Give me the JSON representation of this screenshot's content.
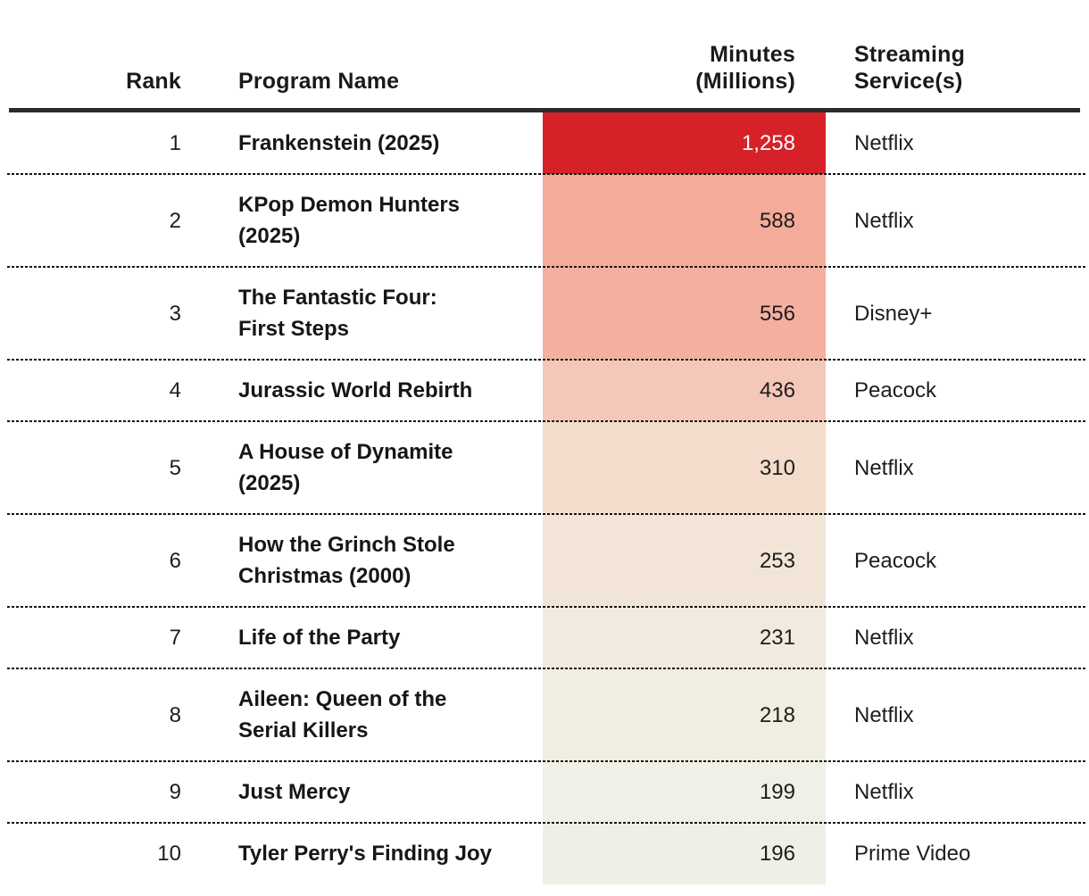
{
  "table": {
    "columns": [
      {
        "key": "rank",
        "label": "Rank"
      },
      {
        "key": "program",
        "label": "Program Name"
      },
      {
        "key": "minutes",
        "label": "Minutes\n(Millions)"
      },
      {
        "key": "service",
        "label": "Streaming\nService(s)"
      }
    ],
    "rows": [
      {
        "rank": "1",
        "program": "Frankenstein (2025)",
        "minutes": "1,258",
        "service": "Netflix",
        "cell_bg": "#d62128",
        "minutes_color": "#ffffff"
      },
      {
        "rank": "2",
        "program": "KPop Demon Hunters\n(2025)",
        "minutes": "588",
        "service": "Netflix",
        "cell_bg": "#f5ab9a",
        "minutes_color": "#1d1d1d"
      },
      {
        "rank": "3",
        "program": "The Fantastic Four:\nFirst Steps",
        "minutes": "556",
        "service": "Disney+",
        "cell_bg": "#f5afa0",
        "minutes_color": "#1d1d1d"
      },
      {
        "rank": "4",
        "program": "Jurassic World Rebirth",
        "minutes": "436",
        "service": "Peacock",
        "cell_bg": "#f4c7b8",
        "minutes_color": "#1d1d1d"
      },
      {
        "rank": "5",
        "program": "A House of Dynamite\n(2025)",
        "minutes": "310",
        "service": "Netflix",
        "cell_bg": "#f3dccc",
        "minutes_color": "#1d1d1d"
      },
      {
        "rank": "6",
        "program": "How the Grinch Stole\nChristmas (2000)",
        "minutes": "253",
        "service": "Peacock",
        "cell_bg": "#f2e5d8",
        "minutes_color": "#1d1d1d"
      },
      {
        "rank": "7",
        "program": "Life of the Party",
        "minutes": "231",
        "service": "Netflix",
        "cell_bg": "#f1eade",
        "minutes_color": "#1d1d1d"
      },
      {
        "rank": "8",
        "program": "Aileen: Queen of the\nSerial Killers",
        "minutes": "218",
        "service": "Netflix",
        "cell_bg": "#f0ede1",
        "minutes_color": "#1d1d1d"
      },
      {
        "rank": "9",
        "program": "Just Mercy",
        "minutes": "199",
        "service": "Netflix",
        "cell_bg": "#eff0e6",
        "minutes_color": "#1d1d1d"
      },
      {
        "rank": "10",
        "program": "Tyler Perry's Finding Joy",
        "minutes": "196",
        "service": "Prime Video",
        "cell_bg": "#efefe5",
        "minutes_color": "#1d1d1d"
      }
    ]
  },
  "colors": {
    "header_rule": "#2d2b2a",
    "separator": "#141414",
    "top_value_bg": "#d62128",
    "top_value_text": "#ffffff",
    "text": "#1a1a1a"
  },
  "chart_data": {
    "type": "table",
    "columns": [
      "Rank",
      "Program Name",
      "Minutes (Millions)",
      "Streaming Service(s)"
    ],
    "categories": [
      "Frankenstein (2025)",
      "KPop Demon Hunters (2025)",
      "The Fantastic Four: First Steps",
      "Jurassic World Rebirth",
      "A House of Dynamite (2025)",
      "How the Grinch Stole Christmas (2000)",
      "Life of the Party",
      "Aileen: Queen of the Serial Killers",
      "Just Mercy",
      "Tyler Perry's Finding Joy"
    ],
    "series": [
      {
        "name": "Minutes (Millions)",
        "values": [
          1258,
          588,
          556,
          436,
          310,
          253,
          231,
          218,
          199,
          196
        ]
      }
    ],
    "services": [
      "Netflix",
      "Netflix",
      "Disney+",
      "Peacock",
      "Netflix",
      "Peacock",
      "Netflix",
      "Netflix",
      "Netflix",
      "Prime Video"
    ],
    "heatmap_column": "Minutes (Millions)",
    "xlabel": "",
    "ylabel": ""
  }
}
